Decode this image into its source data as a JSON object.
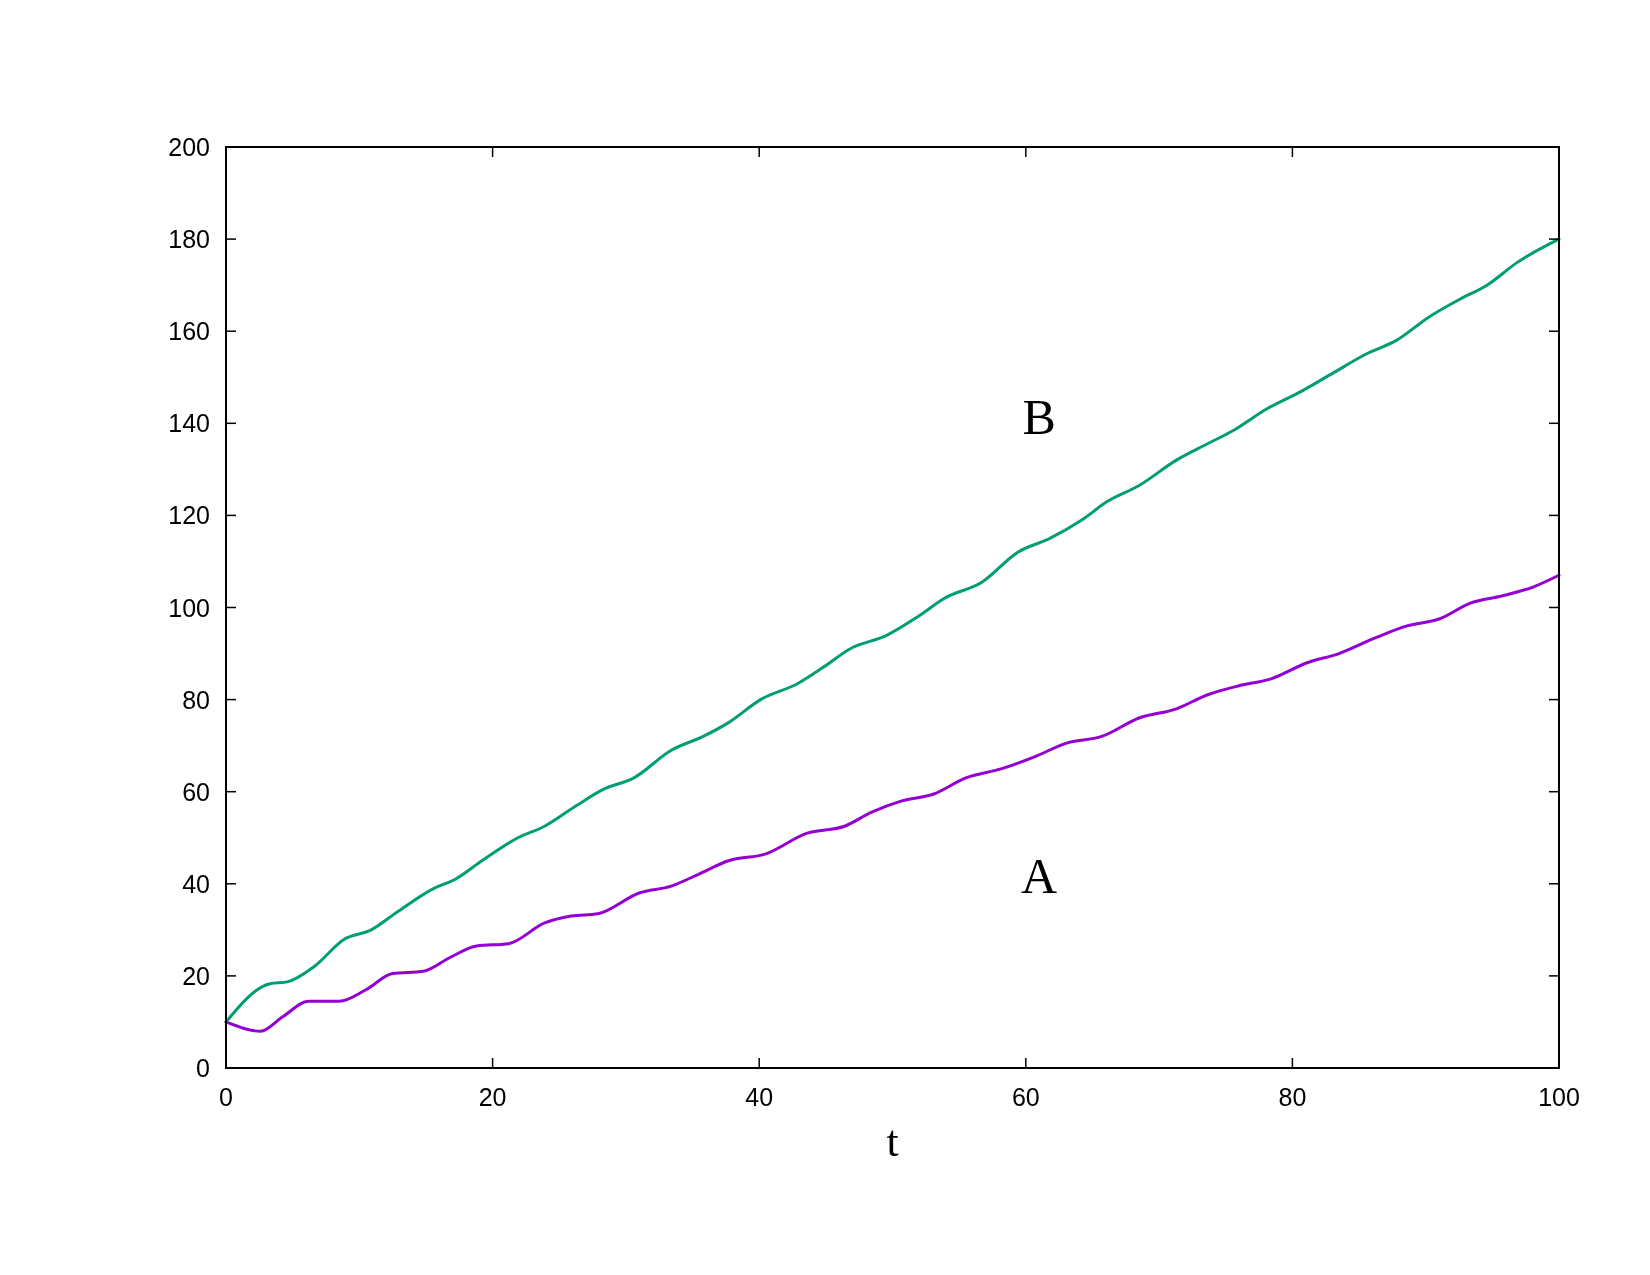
{
  "chart_data": {
    "type": "line",
    "xlabel": "t",
    "xlim": [
      0,
      100
    ],
    "ylim": [
      0,
      200
    ],
    "xticks": [
      0,
      20,
      40,
      60,
      80,
      100
    ],
    "yticks": [
      0,
      20,
      40,
      60,
      80,
      100,
      120,
      140,
      160,
      180,
      200
    ],
    "grid": false,
    "marker": "none",
    "line_style": "solid",
    "series": [
      {
        "name": "A",
        "color": "#9400d3",
        "x": [
          0,
          2.6,
          4.2,
          6.2,
          8.5,
          10.5,
          12.5,
          14.8,
          16.8,
          18.8,
          21.2,
          23.9,
          25.9,
          27.9,
          31,
          33.4,
          35.4,
          37.7,
          40.5,
          43.6,
          46.4,
          48.4,
          50.7,
          53.1,
          55.5,
          58.2,
          60.6,
          63,
          65.7,
          68.5,
          71.3,
          73.6,
          76,
          78.4,
          81.1,
          83.5,
          86.3,
          88.6,
          91,
          93.4,
          95.7,
          98.1,
          100
        ],
        "values": [
          10,
          8,
          11,
          14.5,
          14.5,
          17,
          20.5,
          21,
          24,
          26.5,
          27,
          31.5,
          33,
          33.5,
          38,
          39.5,
          42,
          45,
          46.5,
          51,
          52.5,
          55.5,
          58,
          59.5,
          63,
          65,
          67.5,
          70.5,
          72,
          76,
          78,
          81,
          83,
          84.5,
          88,
          90,
          93.5,
          96,
          97.5,
          101,
          102.5,
          104.5,
          107
        ]
      },
      {
        "name": "B",
        "color": "#009e73",
        "x": [
          0,
          3.3,
          4.6,
          6.6,
          8.9,
          10.9,
          12.9,
          15.6,
          17.2,
          19.2,
          21.9,
          23.9,
          26.3,
          28.3,
          30.6,
          33.4,
          35.8,
          37.7,
          40.1,
          42.9,
          44.8,
          46.8,
          49.6,
          51.9,
          53.9,
          56.7,
          59.4,
          61.8,
          64.2,
          66.1,
          68.5,
          71.3,
          73.6,
          75.6,
          78,
          80.7,
          83.1,
          85.5,
          87.8,
          90.2,
          92.6,
          94.6,
          96.9,
          100
        ],
        "values": [
          10,
          18.3,
          18.7,
          22,
          28,
          30,
          34,
          39,
          41,
          45,
          50,
          52.5,
          57,
          60.5,
          63,
          69,
          72,
          75,
          80,
          83.5,
          87,
          91,
          94,
          98,
          102,
          105.5,
          112,
          115,
          119,
          123,
          126.5,
          132,
          135.5,
          138.5,
          143,
          147,
          151,
          155,
          158,
          163,
          167,
          170,
          175,
          180
        ]
      }
    ]
  }
}
